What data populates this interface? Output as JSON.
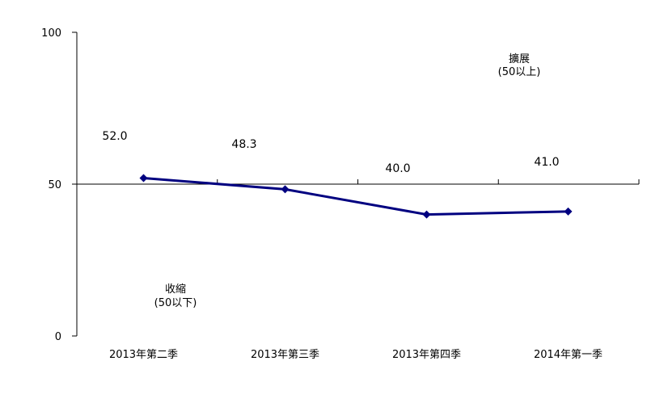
{
  "chart_data": {
    "type": "line",
    "categories": [
      "2013年第二季",
      "2013年第三季",
      "2013年第四季",
      "2014年第一季"
    ],
    "series": [
      {
        "name": "",
        "values": [
          52.0,
          48.3,
          40.0,
          41.0
        ],
        "color": "#000080"
      }
    ],
    "data_labels": [
      "52.0",
      "48.3",
      "40.0",
      "41.0"
    ],
    "ylim": [
      0,
      100
    ],
    "yticks": [
      0,
      50,
      100
    ],
    "baseline": 50,
    "annotations": {
      "expand": {
        "line1": "擴展",
        "line2": "(50以上)"
      },
      "contract": {
        "line1": "收縮",
        "line2": "(50以下)"
      }
    },
    "title": "",
    "xlabel": "",
    "ylabel": "",
    "grid": false,
    "legend": "none"
  }
}
